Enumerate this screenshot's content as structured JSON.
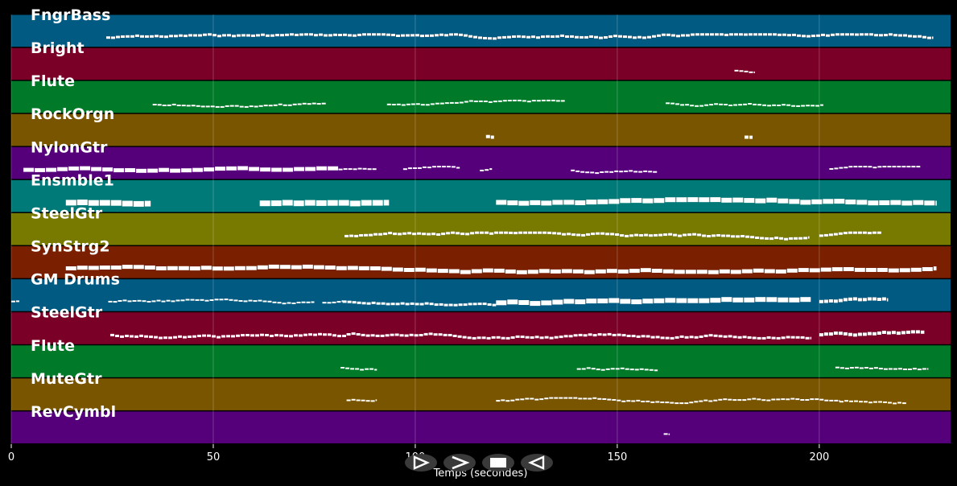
{
  "chart_data": {
    "type": "piano-roll",
    "xlabel": "Temps (secondes)",
    "xlim": [
      0,
      232.5
    ],
    "xticks": [
      0,
      50,
      100,
      150,
      200
    ],
    "grid": true,
    "tracks": [
      {
        "name": "FngrBass",
        "color": "#005a82",
        "segments": [
          [
            23.5,
            228,
            3
          ]
        ]
      },
      {
        "name": "Bright",
        "color": "#7a0028",
        "segments": [
          [
            179,
            184,
            1
          ]
        ]
      },
      {
        "name": "Flute",
        "color": "#007a28",
        "segments": [
          [
            35,
            78,
            2
          ],
          [
            93,
            137,
            2
          ],
          [
            162,
            201,
            2
          ]
        ]
      },
      {
        "name": "RockOrgn",
        "color": "#7a5500",
        "segments": [
          [
            117.5,
            119.5,
            4
          ],
          [
            181.5,
            183.5,
            4
          ]
        ]
      },
      {
        "name": "NylonGtr",
        "color": "#55007a",
        "segments": [
          [
            3,
            81,
            5
          ],
          [
            81,
            90.5,
            2
          ],
          [
            97,
            111,
            1
          ],
          [
            116,
            119,
            1
          ],
          [
            138.5,
            160,
            2
          ],
          [
            202.5,
            225,
            2
          ]
        ]
      },
      {
        "name": "Ensmble1",
        "color": "#007a78",
        "segments": [
          [
            13.5,
            34.5,
            7
          ],
          [
            61.5,
            93.5,
            7
          ],
          [
            120,
            229,
            6
          ]
        ]
      },
      {
        "name": "SteelGtr",
        "color": "#787a00",
        "segments": [
          [
            82.5,
            197.5,
            3
          ],
          [
            200,
            215.5,
            3
          ]
        ]
      },
      {
        "name": "SynStrg2",
        "color": "#7a2000",
        "segments": [
          [
            13.5,
            229,
            5
          ]
        ]
      },
      {
        "name": "GM Drums",
        "color": "#005a82",
        "segments": [
          [
            0,
            2,
            1
          ],
          [
            24,
            75,
            1
          ],
          [
            77,
            82,
            1
          ],
          [
            82,
            120,
            3
          ],
          [
            120,
            198,
            6
          ],
          [
            200,
            217,
            4
          ]
        ]
      },
      {
        "name": "SteelGtr",
        "color": "#7a0028",
        "segments": [
          [
            24.5,
            83,
            3
          ],
          [
            83,
            198,
            3
          ],
          [
            200,
            226,
            4
          ]
        ]
      },
      {
        "name": "Flute",
        "color": "#007a28",
        "segments": [
          [
            81.5,
            90.5,
            2
          ],
          [
            140,
            160,
            2
          ],
          [
            204,
            227,
            2
          ]
        ]
      },
      {
        "name": "MuteGtr",
        "color": "#7a5500",
        "segments": [
          [
            83,
            90.5,
            1
          ],
          [
            120,
            205,
            2
          ],
          [
            205,
            221.5,
            1
          ]
        ]
      },
      {
        "name": "RevCymbl",
        "color": "#55007a",
        "segments": [
          [
            161.5,
            163,
            2
          ]
        ]
      }
    ]
  },
  "controls": [
    {
      "name": "play-button",
      "icon": "play-icon",
      "glyph": "⊳"
    },
    {
      "name": "fast-forward-button",
      "icon": "forward-icon",
      "glyph": ">"
    },
    {
      "name": "stop-button",
      "icon": "stop-icon",
      "glyph": "■"
    },
    {
      "name": "rewind-button",
      "icon": "rewind-icon",
      "glyph": "◁"
    }
  ]
}
